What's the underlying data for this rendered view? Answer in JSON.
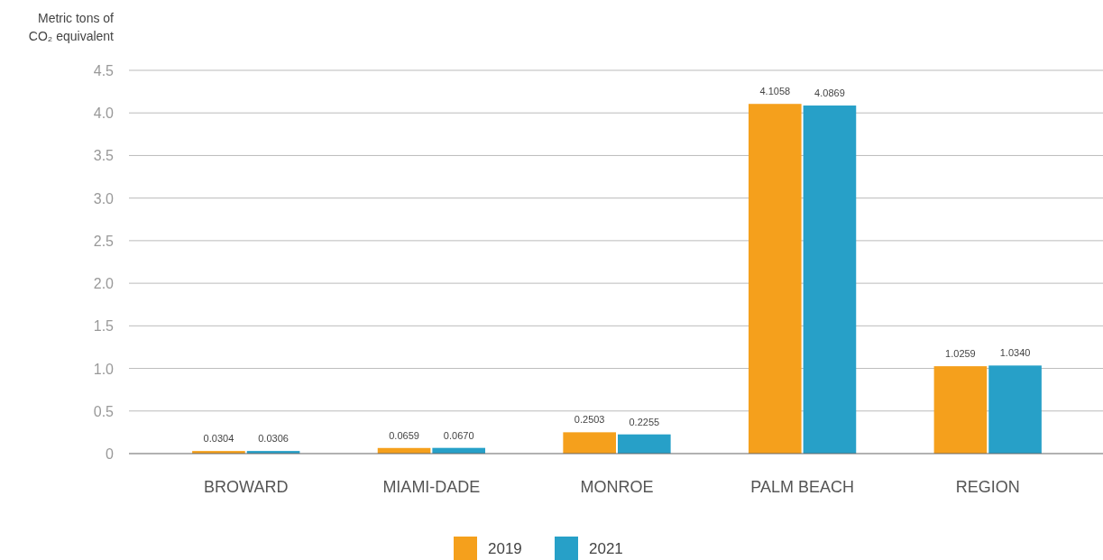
{
  "chart_data": {
    "type": "bar",
    "ylabel": "Metric tons of CO₂ equivalent",
    "categories": [
      "BROWARD",
      "MIAMI-DADE",
      "MONROE",
      "PALM BEACH",
      "REGION"
    ],
    "series": [
      {
        "name": "2019",
        "color": "#f5a01c",
        "values": [
          0.0304,
          0.0659,
          0.2503,
          4.1058,
          1.0259
        ],
        "value_labels": [
          "0.0304",
          "0.0659",
          "0.2503",
          "4.1058",
          "1.0259"
        ]
      },
      {
        "name": "2021",
        "color": "#27a0c8",
        "values": [
          0.0306,
          0.067,
          0.2255,
          4.0869,
          1.034
        ],
        "value_labels": [
          "0.0306",
          "0.0670",
          "0.2255",
          "4.0869",
          "1.0340"
        ]
      }
    ],
    "ylim": [
      0,
      4.5
    ],
    "yticks": [
      0,
      {
        "value": 0.5,
        "label": "0.5"
      },
      {
        "value": 1,
        "label": "1.0"
      },
      {
        "value": 1.5,
        "label": "1.5"
      },
      {
        "value": 2,
        "label": "2.0"
      },
      {
        "value": 2.5,
        "label": "2.5"
      },
      {
        "value": 3,
        "label": "3.0"
      },
      {
        "value": 3.5,
        "label": "3.5"
      },
      {
        "value": 4,
        "label": "4.0"
      },
      {
        "value": 4.5,
        "label": "4.5"
      }
    ],
    "grid": "y",
    "legend": "bottom"
  }
}
